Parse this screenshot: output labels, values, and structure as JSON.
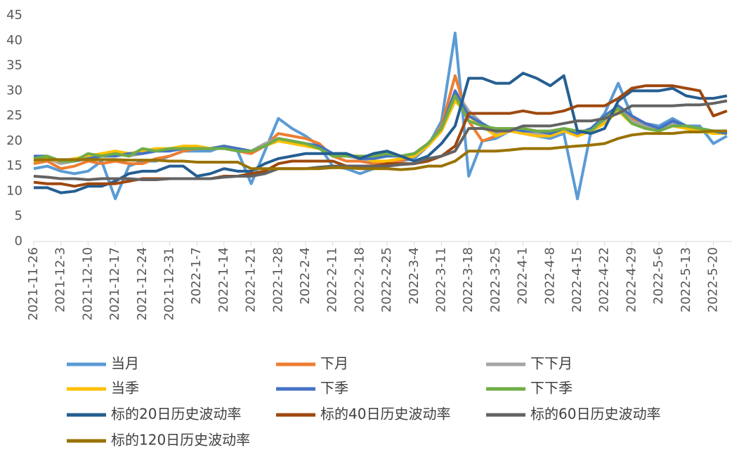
{
  "chart_data": {
    "type": "line",
    "categories": [
      "2021-11-26",
      null,
      "2021-12-3",
      null,
      "2021-12-10",
      null,
      "2021-12-17",
      null,
      "2021-12-24",
      null,
      "2021-12-31",
      null,
      "2022-1-7",
      null,
      "2022-1-14",
      null,
      "2022-1-21",
      null,
      "2022-1-28",
      null,
      "2022-2-4",
      null,
      "2022-2-11",
      null,
      "2022-2-18",
      null,
      "2022-2-25",
      null,
      "2022-3-4",
      null,
      "2022-3-11",
      null,
      "2022-3-18",
      null,
      "2022-3-25",
      null,
      "2022-4-1",
      null,
      "2022-4-8",
      null,
      "2022-4-15",
      null,
      "2022-4-22",
      null,
      "2022-4-29",
      null,
      "2022-5-6",
      null,
      "2022-5-13",
      null,
      "2022-5-20",
      null
    ],
    "ylim": [
      0,
      45
    ],
    "yticks": [
      0,
      5,
      10,
      15,
      20,
      25,
      30,
      35,
      40,
      45
    ],
    "grid": false,
    "series": [
      {
        "name": "当月",
        "color": "#5b9bd5",
        "values": [
          14.5,
          15,
          14,
          13.5,
          14,
          16,
          8.5,
          15,
          16,
          16,
          17,
          18,
          18,
          18,
          19,
          18,
          11.5,
          18,
          24.5,
          22.5,
          21,
          19,
          15,
          14.5,
          13.5,
          14.5,
          15.5,
          16,
          16.5,
          19,
          24,
          41.5,
          13,
          20,
          20.5,
          22,
          21.5,
          21,
          20.5,
          21.5,
          8.5,
          22,
          25.5,
          31.5,
          25,
          23.5,
          23,
          24.5,
          23,
          23,
          19.5,
          21
        ]
      },
      {
        "name": "下月",
        "color": "#ed7d31",
        "values": [
          15.5,
          16,
          14.5,
          15,
          16,
          15.5,
          16,
          15.5,
          15.5,
          16.5,
          17,
          18,
          18.5,
          18.5,
          19,
          18,
          17.5,
          19,
          21.5,
          21,
          20.5,
          19.5,
          17,
          16,
          16,
          15.5,
          15.5,
          16,
          17,
          19,
          23,
          33,
          24,
          20,
          21,
          22,
          22,
          21.5,
          21,
          22,
          21,
          22,
          24,
          27,
          24.5,
          23.5,
          22.5,
          23.5,
          23,
          22.5,
          22,
          21.5
        ]
      },
      {
        "name": "下下月",
        "color": "#a5a5a5",
        "values": [
          16.5,
          16.5,
          15.5,
          16,
          17,
          17.5,
          17.5,
          17,
          17.5,
          18,
          18.5,
          18.5,
          18.5,
          18.5,
          19,
          18.5,
          18,
          19.5,
          20.5,
          20,
          19.5,
          19,
          17.5,
          17,
          16.5,
          16,
          16,
          16.5,
          17,
          19,
          22,
          30,
          26,
          23.5,
          21.5,
          22,
          22,
          21.5,
          21.5,
          22,
          21.5,
          22,
          24,
          26.5,
          24,
          23,
          22.5,
          23.5,
          23,
          22.5,
          22,
          21.5
        ]
      },
      {
        "name": "当季",
        "color": "#ffc000",
        "values": [
          16,
          16.5,
          16,
          16.5,
          17,
          17.5,
          18,
          17.5,
          18,
          18.5,
          18.5,
          19,
          19,
          18.5,
          19,
          18.5,
          18,
          19,
          20,
          19.5,
          19,
          18.5,
          17.5,
          17,
          17,
          16,
          16,
          16.5,
          17,
          19,
          22,
          28,
          25,
          23,
          21,
          22,
          21.5,
          21,
          21,
          22,
          21,
          22,
          23.5,
          26,
          23.5,
          22.5,
          22,
          23,
          22.5,
          22,
          21.5,
          21.5
        ]
      },
      {
        "name": "下季",
        "color": "#4472c4",
        "values": [
          17,
          17,
          16,
          16,
          16.5,
          17,
          17,
          17.5,
          17.5,
          18,
          18,
          18.5,
          18.5,
          18.5,
          19,
          18.5,
          18,
          19,
          20.5,
          20,
          19.5,
          19,
          17.5,
          17.5,
          16.5,
          16.5,
          17,
          17,
          17.5,
          19.5,
          22.5,
          30,
          25,
          23.5,
          22,
          22.5,
          22,
          22,
          21.5,
          22.5,
          21.5,
          22.5,
          25,
          27,
          25,
          23.5,
          22.5,
          24,
          23,
          22.5,
          22,
          21.5
        ]
      },
      {
        "name": "下下季",
        "color": "#70ad47",
        "values": [
          16.5,
          17,
          16,
          16,
          17.5,
          17,
          17.5,
          17,
          18.5,
          18,
          18.5,
          18.5,
          18.5,
          18.5,
          18.5,
          18,
          18,
          19,
          20.5,
          20,
          19.5,
          18.5,
          17,
          17,
          17,
          17,
          17.5,
          17,
          17.5,
          19.5,
          22.5,
          29,
          24,
          23,
          22.5,
          22.5,
          22.5,
          22,
          22,
          22.5,
          22,
          22,
          24.5,
          26.5,
          23.5,
          22.5,
          22,
          23,
          23,
          22.5,
          22,
          22
        ]
      },
      {
        "name": "标的20日历史波动率",
        "color": "#255e91",
        "values": [
          10.7,
          10.7,
          9.7,
          10,
          11,
          11,
          12,
          13.5,
          14,
          14,
          15,
          15,
          13,
          13.5,
          14.5,
          14,
          14,
          15.5,
          16.5,
          17,
          17.5,
          17.5,
          17.5,
          17.5,
          16.5,
          17.5,
          18,
          17,
          16,
          17,
          19.5,
          23,
          32.5,
          32.5,
          31.5,
          31.5,
          33.5,
          32.5,
          31,
          33,
          22,
          21.5,
          22.5,
          28,
          30,
          30,
          30,
          30.5,
          29,
          28.5,
          28.5,
          29
        ]
      },
      {
        "name": "标的40日历史波动率",
        "color": "#9e480e",
        "values": [
          11.8,
          11.5,
          11.5,
          11,
          11.5,
          11.5,
          11.5,
          12,
          12.5,
          12.5,
          12.5,
          12.5,
          12.5,
          12.5,
          13,
          13,
          13.5,
          14,
          15.5,
          16,
          16,
          16,
          16,
          15,
          15,
          15,
          15.5,
          15.5,
          15.5,
          16,
          17,
          19,
          25.5,
          25.5,
          25.5,
          25.5,
          26,
          25.5,
          25.5,
          26,
          27,
          27,
          27,
          28.5,
          30.5,
          31,
          31,
          31,
          30.5,
          30,
          25,
          26
        ]
      },
      {
        "name": "标的60日历史波动率",
        "color": "#636363",
        "values": [
          13,
          12.8,
          12.5,
          12.5,
          12.3,
          12.5,
          12.5,
          12.5,
          12.3,
          12.3,
          12.5,
          12.5,
          12.5,
          12.5,
          12.8,
          13,
          13,
          13.5,
          14.5,
          14.5,
          14.5,
          14.8,
          15,
          15,
          15,
          15,
          15,
          15.3,
          15.5,
          16.5,
          17,
          18,
          22.5,
          22.5,
          22,
          22,
          23,
          23,
          23,
          23.5,
          24,
          24,
          24.5,
          25.5,
          27,
          27,
          27,
          27,
          27.2,
          27.2,
          27.5,
          28
        ]
      },
      {
        "name": "标的120日历史波动率",
        "color": "#997300",
        "values": [
          16.2,
          16.3,
          16.3,
          16.3,
          16.3,
          16.3,
          16.3,
          16.2,
          16.2,
          16.2,
          16,
          16,
          15.8,
          15.8,
          15.8,
          15.8,
          14.5,
          14.5,
          14.5,
          14.5,
          14.5,
          14.5,
          14.7,
          14.7,
          14.5,
          14.5,
          14.5,
          14.3,
          14.5,
          15,
          15,
          16,
          18,
          18,
          18,
          18.2,
          18.5,
          18.5,
          18.5,
          18.8,
          19,
          19.2,
          19.5,
          20.5,
          21.2,
          21.5,
          21.5,
          21.5,
          21.8,
          21.8,
          22,
          22
        ]
      }
    ]
  }
}
